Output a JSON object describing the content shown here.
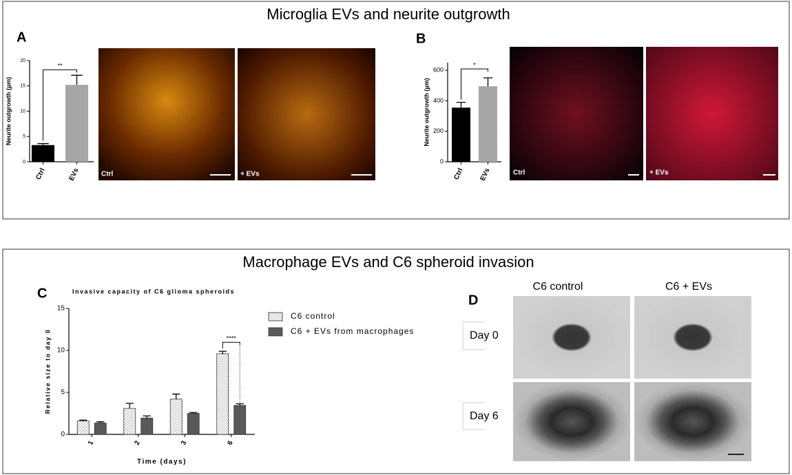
{
  "sections": [
    {
      "title": "Microglia EVs and neurite outgrowth"
    },
    {
      "title": "Macrophage EVs and C6 spheroid invasion"
    }
  ],
  "panels": [
    "A",
    "B",
    "C",
    "D"
  ],
  "images": {
    "A": [
      "Ctrl",
      "+ EVs"
    ],
    "B": [
      "Ctrl",
      "+ EVs"
    ]
  },
  "panel_d": {
    "columns": [
      "C6 control",
      "C6 + EVs"
    ],
    "rows": [
      "Day 0",
      "Day 6"
    ]
  },
  "chart_data": [
    {
      "type": "bar",
      "ylabel": "Neurite outgrowth (µm)",
      "categories": [
        "Ctrl",
        "EVs"
      ],
      "values": [
        3.3,
        15.2
      ],
      "errors": [
        0.3,
        1.9
      ],
      "colors": [
        "#000000",
        "#a6a6a6"
      ],
      "ylim": [
        0,
        20
      ],
      "yticks": [
        0,
        5,
        10,
        15,
        20
      ],
      "annotation": "**"
    },
    {
      "type": "bar",
      "ylabel": "Neurite outgrowth (µm)",
      "categories": [
        "Ctrl",
        "EVs"
      ],
      "values": [
        355,
        495
      ],
      "errors": [
        35,
        55
      ],
      "colors": [
        "#000000",
        "#a6a6a6"
      ],
      "ylim": [
        0,
        650
      ],
      "yticks": [
        0,
        200,
        400,
        600
      ],
      "annotation": "*"
    },
    {
      "type": "grouped-bar",
      "title": "Invasive capacity of C6 glioma spheroids",
      "xlabel": "Time (days)",
      "ylabel": "Relative size to day 0",
      "categories": [
        "1",
        "2",
        "3",
        "6"
      ],
      "series": [
        {
          "name": "C6 control",
          "color": "#ffffff",
          "hatch": "dots",
          "values": [
            1.6,
            3.1,
            4.2,
            9.6
          ],
          "errors": [
            0.1,
            0.6,
            0.6,
            0.3
          ]
        },
        {
          "name": "C6 + EVs from macrophages",
          "color": "#595959",
          "values": [
            1.35,
            1.95,
            2.5,
            3.45
          ],
          "errors": [
            0.15,
            0.25,
            0.1,
            0.2
          ]
        }
      ],
      "ylim": [
        0,
        15
      ],
      "yticks": [
        0,
        5,
        10,
        15
      ],
      "annotation": "****"
    }
  ]
}
